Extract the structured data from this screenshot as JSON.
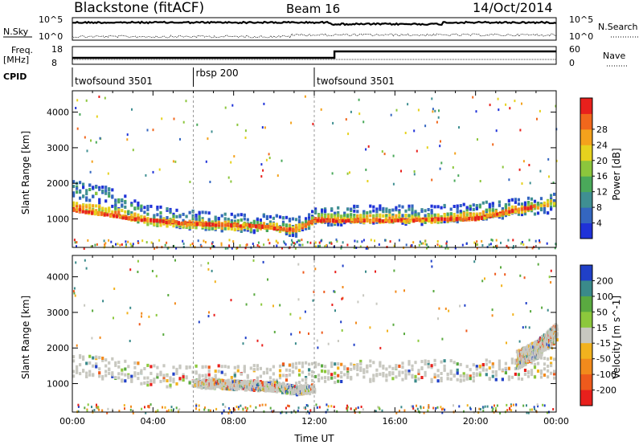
{
  "header": {
    "station": "Blackstone (fitACF)",
    "beam": "Beam 16",
    "date": "14/Oct/2014"
  },
  "top_panels": {
    "nsky_label": "N.Sky",
    "nsearch_label": "N.Search",
    "left_ticks": [
      "10^5",
      "10^0"
    ],
    "right_ticks": [
      "10^5",
      "10^0"
    ],
    "freq_label_line1": "Freq.",
    "freq_label_line2": "[MHz]",
    "freq_ticks": [
      "18",
      "8"
    ],
    "nave_label": "Nave",
    "nave_ticks": [
      "60",
      "0"
    ],
    "cpid_label": "CPID",
    "cpid_segments": [
      {
        "label": "twofsound 3501",
        "start_hour": 0,
        "end_hour": 6
      },
      {
        "label": "rbsp 200",
        "start_hour": 6,
        "end_hour": 12
      },
      {
        "label": "twofsound 3501",
        "start_hour": 12,
        "end_hour": 24
      }
    ]
  },
  "power_colorbar": {
    "label": "Power [dB]",
    "ticks": [
      "4",
      "8",
      "12",
      "16",
      "20",
      "24",
      "28"
    ],
    "colors": [
      "#1f32d8",
      "#3466c0",
      "#3f8f92",
      "#4aa95a",
      "#8cc63c",
      "#e6d21e",
      "#f4a21c",
      "#f1671c",
      "#e8201c"
    ]
  },
  "velocity_colorbar": {
    "label": "Velocity [m s^-1]",
    "ticks": [
      "200",
      "100",
      "50",
      "15",
      "-15",
      "-50",
      "-100",
      "-200"
    ],
    "colors": [
      "#2040c8",
      "#3a8a8a",
      "#5aaa40",
      "#8cc83c",
      "#c8c8c0",
      "#f2b21e",
      "#f28a1c",
      "#ee5a1c",
      "#e8201c"
    ]
  },
  "chart_data": [
    {
      "type": "heatmap",
      "name_note": "",
      "ylabel": "Slant Range [km]",
      "xlabel": "",
      "x_ticks": [
        "00:00",
        "04:00",
        "08:00",
        "12:00",
        "16:00",
        "20:00",
        "00:00"
      ],
      "y_ticks": [
        1000,
        2000,
        3000,
        4000
      ],
      "xlim_hours": [
        0,
        24
      ],
      "ylim_km": [
        200,
        4600
      ],
      "bands": [
        {
          "level": 0.3,
          "points": [
            [
              0,
              1850
            ],
            [
              2,
              1650
            ],
            [
              3,
              1350
            ],
            [
              4,
              1150
            ],
            [
              6,
              1000
            ],
            [
              8,
              950
            ],
            [
              10,
              900
            ],
            [
              11,
              800
            ],
            [
              12,
              1100
            ],
            [
              14,
              1150
            ],
            [
              18,
              1150
            ],
            [
              20,
              1250
            ],
            [
              22,
              1350
            ],
            [
              24,
              1500
            ]
          ],
          "width": 520
        },
        {
          "level": 0.7,
          "points": [
            [
              0,
              1400
            ],
            [
              2,
              1250
            ],
            [
              3,
              1100
            ],
            [
              4,
              950
            ],
            [
              6,
              900
            ],
            [
              8,
              850
            ],
            [
              10,
              800
            ],
            [
              11,
              750
            ],
            [
              12,
              1050
            ],
            [
              14,
              1050
            ],
            [
              18,
              1050
            ],
            [
              20,
              1150
            ],
            [
              22,
              1300
            ],
            [
              24,
              1500
            ]
          ],
          "width": 220
        },
        {
          "level": 0.95,
          "points": [
            [
              0,
              1300
            ],
            [
              3,
              1050
            ],
            [
              6,
              900
            ],
            [
              9,
              850
            ],
            [
              11,
              720
            ],
            [
              12,
              1000
            ],
            [
              16,
              1000
            ],
            [
              20,
              1050
            ],
            [
              23,
              1400
            ]
          ],
          "width": 60
        }
      ]
    },
    {
      "type": "heatmap",
      "ylabel": "Slant Range [km]",
      "xlabel": "Time UT",
      "x_ticks": [
        "00:00",
        "04:00",
        "08:00",
        "12:00",
        "16:00",
        "20:00",
        "00:00"
      ],
      "y_ticks": [
        1000,
        2000,
        3000,
        4000
      ],
      "xlim_hours": [
        0,
        24
      ],
      "ylim_km": [
        200,
        4600
      ],
      "bands": [
        {
          "level": 0.5,
          "points": [
            [
              0,
              1550
            ],
            [
              2,
              1450
            ],
            [
              4,
              1250
            ],
            [
              6,
              1250
            ],
            [
              8,
              1250
            ],
            [
              12,
              1350
            ],
            [
              16,
              1400
            ],
            [
              20,
              1400
            ],
            [
              24,
              1500
            ]
          ],
          "width": 600
        },
        {
          "level": 0.8,
          "points": [
            [
              6,
              1050
            ],
            [
              8,
              1000
            ],
            [
              10,
              950
            ],
            [
              11,
              850
            ],
            [
              12,
              900
            ]
          ],
          "width": 250
        },
        {
          "level": 0.2,
          "points": [
            [
              22,
              1700
            ],
            [
              23,
              2000
            ],
            [
              24,
              2500
            ]
          ],
          "width": 500
        }
      ]
    }
  ]
}
